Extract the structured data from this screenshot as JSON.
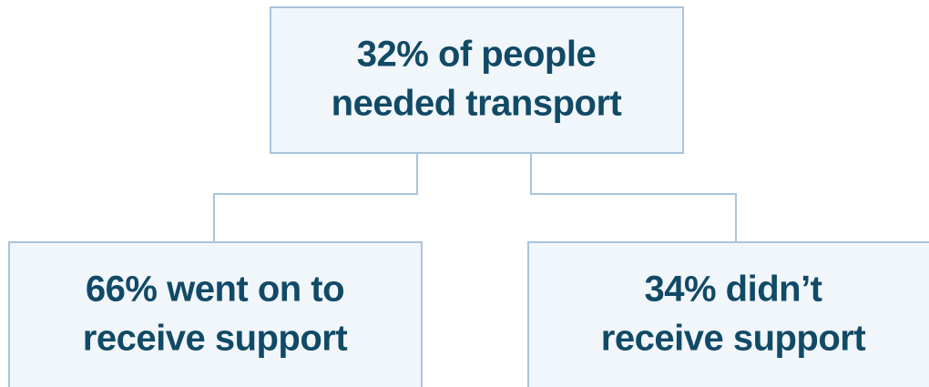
{
  "nodes": [
    {
      "lines": [
        "32% of people",
        "needed transport"
      ]
    },
    {
      "lines": [
        "66% went on to",
        "receive support"
      ]
    },
    {
      "lines": [
        "34% didn’t",
        "receive support"
      ]
    }
  ]
}
